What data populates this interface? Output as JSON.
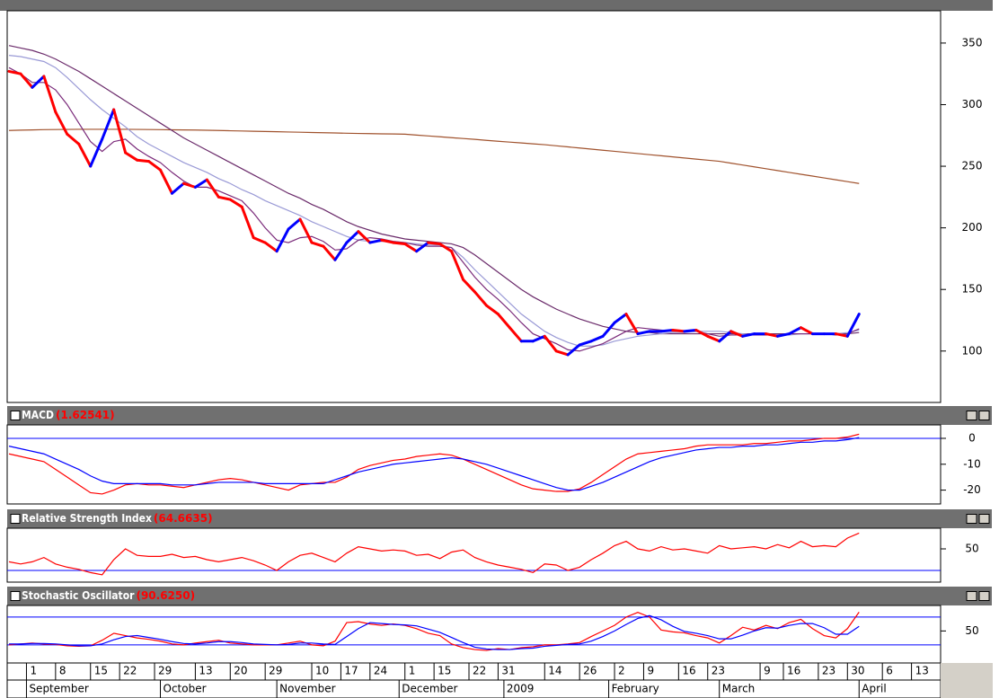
{
  "chart_data": {
    "type": "stock_panels",
    "xlim": [
      0,
      160
    ],
    "x": [
      0,
      2,
      4,
      6,
      8,
      10,
      12,
      14,
      16,
      18,
      20,
      22,
      24,
      26,
      28,
      30,
      32,
      34,
      36,
      38,
      40,
      42,
      44,
      46,
      48,
      50,
      52,
      54,
      56,
      58,
      60,
      62,
      64,
      66,
      68,
      70,
      72,
      74,
      76,
      78,
      80,
      82,
      84,
      86,
      88,
      90,
      92,
      94,
      96,
      98,
      100,
      102,
      104,
      106,
      108,
      110,
      112,
      114,
      116,
      118,
      120,
      122,
      124,
      126,
      128,
      130,
      132,
      134,
      136,
      138,
      140,
      142,
      144,
      146
    ],
    "xticks": [
      {
        "value": 3,
        "label": "1"
      },
      {
        "value": 8,
        "label": "8"
      },
      {
        "value": 14,
        "label": "15"
      },
      {
        "value": 19,
        "label": "22"
      },
      {
        "value": 25,
        "label": "29"
      },
      {
        "value": 32,
        "label": "13"
      },
      {
        "value": 38,
        "label": "20"
      },
      {
        "value": 44,
        "label": "29"
      },
      {
        "value": 52,
        "label": "10"
      },
      {
        "value": 57,
        "label": "17"
      },
      {
        "value": 62,
        "label": "24"
      },
      {
        "value": 68,
        "label": "1"
      },
      {
        "value": 73,
        "label": "15"
      },
      {
        "value": 79,
        "label": "22"
      },
      {
        "value": 84,
        "label": "31"
      },
      {
        "value": 92,
        "label": "14"
      },
      {
        "value": 98,
        "label": "26"
      },
      {
        "value": 104,
        "label": "2"
      },
      {
        "value": 109,
        "label": "9"
      },
      {
        "value": 115,
        "label": "16"
      },
      {
        "value": 120,
        "label": "23"
      },
      {
        "value": 129,
        "label": "9"
      },
      {
        "value": 133,
        "label": "16"
      },
      {
        "value": 139,
        "label": "23"
      },
      {
        "value": 144,
        "label": "30"
      },
      {
        "value": 150,
        "label": "6"
      },
      {
        "value": 155,
        "label": "13"
      }
    ],
    "months": [
      {
        "value": 3,
        "label": "September"
      },
      {
        "value": 26,
        "label": "October"
      },
      {
        "value": 46,
        "label": "November"
      },
      {
        "value": 67,
        "label": "December"
      },
      {
        "value": 85,
        "label": "2009"
      },
      {
        "value": 103,
        "label": "February"
      },
      {
        "value": 122,
        "label": "March"
      },
      {
        "value": 146,
        "label": "April"
      }
    ],
    "panels": [
      {
        "type": "line",
        "ylim": [
          59,
          374
        ],
        "yticks": [
          100,
          150,
          200,
          250,
          300,
          350
        ],
        "series": [
          {
            "color": "#a0522d",
            "values": [
              279,
              279.3,
              279.5,
              279.7,
              279.8,
              279.9,
              280,
              280,
              280,
              280,
              280,
              279.9,
              279.8,
              279.7,
              279.6,
              279.5,
              279.4,
              279.2,
              279,
              278.8,
              278.6,
              278.4,
              278.2,
              278,
              277.8,
              277.6,
              277.4,
              277.2,
              277,
              276.8,
              276.6,
              276.5,
              276.3,
              276.2,
              276,
              275.3,
              274.6,
              273.9,
              273.2,
              272.5,
              271.8,
              271,
              270.3,
              269.6,
              268.9,
              268.2,
              267.5,
              266.6,
              265.7,
              264.8,
              263.9,
              263,
              262.1,
              261.2,
              260.3,
              259.4,
              258.5,
              257.6,
              256.7,
              255.8,
              254.9,
              254,
              252.5,
              251,
              249.5,
              248,
              246.5,
              245,
              243.5,
              242,
              240.5,
              239,
              237.5,
              236
            ]
          },
          {
            "color": "#6a2a6a",
            "values": [
              348,
              346,
              344,
              341,
              337,
              332,
              327,
              321,
              315,
              309,
              303,
              297,
              291,
              285,
              279,
              273,
              268,
              263,
              258,
              253,
              248,
              243,
              238,
              233,
              228,
              224,
              219,
              215,
              210,
              205,
              201,
              198,
              195,
              193,
              191,
              190,
              189,
              188,
              187,
              184,
              178,
              171,
              164,
              157,
              150,
              144,
              139,
              134,
              130,
              126,
              123,
              120,
              118,
              116,
              115,
              115,
              114,
              114,
              114,
              114,
              114,
              114,
              114,
              114,
              114,
              114,
              114,
              114,
              114,
              114,
              114,
              114,
              114,
              115
            ]
          },
          {
            "color": "#9a9ad6",
            "values": [
              340,
              339,
              337,
              335,
              330,
              322,
              313,
              304,
              296,
              289,
              282,
              274,
              268,
              263,
              258,
              253,
              249,
              245,
              240,
              236,
              231,
              227,
              222,
              218,
              214,
              210,
              205,
              201,
              197,
              193,
              190,
              189,
              189,
              189,
              188,
              187,
              186,
              186,
              184,
              176,
              166,
              157,
              148,
              139,
              130,
              123,
              116,
              111,
              107,
              104,
              104,
              105,
              108,
              110,
              112,
              113,
              114,
              115,
              115,
              116,
              116,
              116,
              115,
              114,
              113,
              113,
              113,
              113,
              114,
              114,
              114,
              114,
              115,
              117
            ]
          },
          {
            "color": "#7a2a7a",
            "values": [
              330,
              325,
              318,
              318,
              312,
              300,
              285,
              270,
              262,
              270,
              272,
              264,
              258,
              253,
              245,
              238,
              233,
              233,
              230,
              226,
              222,
              212,
              200,
              190,
              188,
              192,
              193,
              189,
              182,
              183,
              190,
              192,
              191,
              189,
              188,
              186,
              185,
              185,
              184,
              172,
              160,
              150,
              142,
              133,
              123,
              114,
              110,
              106,
              101,
              100,
              103,
              106,
              111,
              116,
              119,
              118,
              117,
              116,
              116,
              116,
              114,
              112,
              113,
              113,
              113,
              113,
              113,
              114,
              114,
              114,
              114,
              113,
              114,
              118
            ]
          },
          {
            "up_color": "#0000ff",
            "down_color": "#ff0000",
            "values": [
              327,
              325,
              314,
              323,
              294,
              276,
              268,
              250,
              272,
              296,
              261,
              255,
              254,
              247,
              228,
              236,
              233,
              239,
              225,
              223,
              217,
              192,
              188,
              181,
              199,
              207,
              188,
              185,
              174,
              188,
              197,
              188,
              190,
              188,
              187,
              181,
              188,
              187,
              181,
              158,
              148,
              137,
              130,
              119,
              108,
              108,
              112,
              100,
              97,
              105,
              108,
              112,
              123,
              130,
              114,
              116,
              116,
              117,
              116,
              117,
              112,
              108,
              116,
              112,
              114,
              114,
              112,
              114,
              119,
              114,
              114,
              114,
              112,
              130
            ]
          }
        ]
      },
      {
        "type": "line",
        "title": "MACD",
        "value_text": "(1.62541)",
        "ylim": [
          -25,
          4.5
        ],
        "yticks": [
          0,
          -10,
          -20
        ],
        "ref_lines": [
          0
        ],
        "ref_color": "#0000ff",
        "series": [
          {
            "color": "#ff0000",
            "values": [
              -6,
              -7,
              -8,
              -9,
              -12,
              -15,
              -18,
              -21,
              -21.5,
              -20,
              -18,
              -17.5,
              -18,
              -18,
              -18.5,
              -19,
              -18,
              -17,
              -16,
              -15.5,
              -16,
              -17,
              -18,
              -19,
              -20,
              -18,
              -17.5,
              -17,
              -17,
              -15,
              -12,
              -10.5,
              -9.5,
              -8.5,
              -8,
              -7,
              -6.5,
              -6,
              -6.5,
              -8,
              -10,
              -12,
              -14,
              -16,
              -18,
              -19.5,
              -20,
              -20.5,
              -20.5,
              -19.5,
              -17,
              -14,
              -11,
              -8,
              -6,
              -5.5,
              -5,
              -4.5,
              -4,
              -3,
              -2.5,
              -2.5,
              -2.5,
              -2.5,
              -2,
              -2,
              -1.5,
              -1,
              -1,
              -0.5,
              0,
              0,
              0.5,
              1.6
            ]
          },
          {
            "color": "#0000ff",
            "values": [
              -3,
              -4,
              -5,
              -6,
              -8,
              -10,
              -12,
              -14.5,
              -16.5,
              -17.5,
              -17.5,
              -17.5,
              -17.5,
              -17.5,
              -18,
              -18,
              -18,
              -17.5,
              -17,
              -17,
              -17,
              -17,
              -17.5,
              -17.5,
              -17.5,
              -17.5,
              -17.5,
              -17.5,
              -16,
              -14.5,
              -13,
              -12,
              -11,
              -10,
              -9.5,
              -9,
              -8.5,
              -8,
              -7.5,
              -8,
              -9,
              -10,
              -11.5,
              -13,
              -14.5,
              -16,
              -17.5,
              -19,
              -20,
              -20,
              -18.5,
              -17,
              -15,
              -13,
              -11,
              -9,
              -7.5,
              -6.5,
              -5.5,
              -4.5,
              -4,
              -3.5,
              -3.5,
              -3,
              -3,
              -2.5,
              -2.5,
              -2,
              -1.5,
              -1.5,
              -1,
              -1,
              -0.5,
              0.3
            ]
          }
        ]
      },
      {
        "type": "line",
        "title": "Relative Strength Index",
        "value_text": "(64.6635)",
        "ylim": [
          20,
          67.5
        ],
        "yticks": [
          50
        ],
        "ref_lines": [
          30
        ],
        "ref_color": "#0000ff",
        "series": [
          {
            "color": "#ff0000",
            "values": [
              38,
              36,
              38,
              42,
              36,
              33,
              31,
              28,
              26,
              40,
              50,
              44,
              43,
              43,
              45,
              42,
              43,
              40,
              38,
              40,
              42,
              39,
              35,
              30,
              38,
              44,
              46,
              42,
              38,
              46,
              52,
              50,
              48,
              49,
              48,
              44,
              45,
              41,
              47,
              49,
              42,
              38,
              35,
              33,
              31,
              28,
              36,
              35,
              30,
              33,
              40,
              46,
              53,
              57,
              50,
              48,
              52,
              49,
              50,
              48,
              46,
              53,
              50,
              51,
              52,
              50,
              54,
              51,
              57,
              52,
              53,
              52,
              60,
              64.6635
            ]
          }
        ]
      },
      {
        "type": "line",
        "title": "Stochastic Oscillator",
        "value_text": "(90.6250)",
        "ylim": [
          -17,
          101
        ],
        "yticks": [
          50
        ],
        "ref_lines": [
          80,
          20
        ],
        "ref_color": "#0000ff",
        "series": [
          {
            "color": "#ff0000",
            "values": [
              20,
              22,
              24,
              22,
              21,
              18,
              17,
              18,
              30,
              45,
              40,
              35,
              32,
              28,
              22,
              20,
              24,
              27,
              30,
              24,
              22,
              20,
              20,
              20,
              24,
              28,
              20,
              18,
              28,
              68,
              70,
              65,
              62,
              65,
              62,
              55,
              45,
              40,
              22,
              14,
              10,
              8,
              12,
              10,
              14,
              16,
              20,
              20,
              22,
              25,
              38,
              50,
              62,
              80,
              90,
              80,
              52,
              48,
              46,
              40,
              35,
              24,
              40,
              58,
              52,
              62,
              55,
              68,
              75,
              55,
              40,
              35,
              55,
              90.625
            ]
          },
          {
            "color": "#0000ff",
            "values": [
              22,
              22,
              23,
              23,
              22,
              20,
              18,
              18,
              22,
              31,
              38,
              40,
              36,
              32,
              27,
              23,
              22,
              24,
              27,
              27,
              25,
              22,
              21,
              20,
              21,
              24,
              24,
              22,
              21,
              38,
              55,
              68,
              66,
              64,
              63,
              61,
              54,
              47,
              36,
              25,
              15,
              11,
              10,
              10,
              12,
              13,
              17,
              19,
              21,
              22,
              28,
              38,
              50,
              64,
              77,
              83,
              74,
              60,
              49,
              45,
              40,
              33,
              33,
              41,
              50,
              57,
              56,
              62,
              66,
              66,
              57,
              43,
              43,
              60
            ]
          }
        ]
      }
    ]
  }
}
